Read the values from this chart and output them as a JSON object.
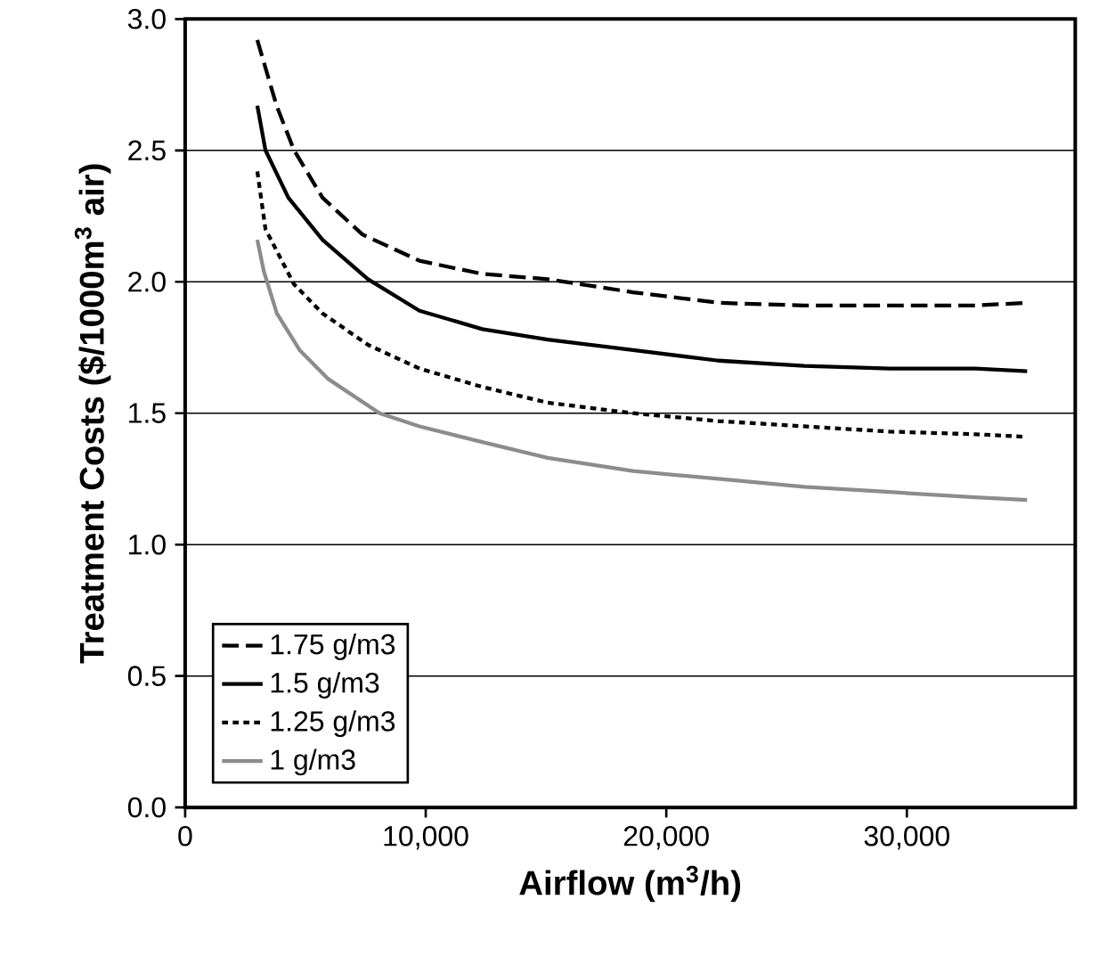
{
  "chart_data": {
    "type": "line",
    "xlabel": "Airflow (m$^{3}$/h)",
    "ylabel": "Treatment Costs ($/1000m$^{3}$ air)",
    "xlim": [
      0,
      37000
    ],
    "ylim": [
      0,
      3
    ],
    "xticks": [
      0,
      {
        "value": 10000,
        "label": "10,000"
      },
      {
        "value": 20000,
        "label": "20,000"
      },
      {
        "value": 30000,
        "label": "30,000"
      }
    ],
    "yticks": [
      {
        "value": 0,
        "label": "0.0"
      },
      {
        "value": 0.5,
        "label": "0.5"
      },
      {
        "value": 1,
        "label": "1.0"
      },
      {
        "value": 1.5,
        "label": "1.5"
      },
      {
        "value": 2,
        "label": "2.0"
      },
      {
        "value": 2.5,
        "label": "2.5"
      },
      {
        "value": 3,
        "label": "3.0"
      }
    ],
    "grid": "y",
    "legend": "bottom left",
    "marker": "none",
    "series": [
      {
        "name": "1.75 g/m3",
        "color": "#000000",
        "line_style": "dashed",
        "x": [
          3000,
          3800,
          4530,
          5710,
          7370,
          9740,
          12350,
          15070,
          18620,
          22170,
          25730,
          29280,
          32840,
          35000
        ],
        "values": [
          2.92,
          2.67,
          2.5,
          2.32,
          2.18,
          2.08,
          2.03,
          2.01,
          1.96,
          1.92,
          1.91,
          1.91,
          1.91,
          1.92
        ]
      },
      {
        "name": "1.5 g/m3",
        "color": "#000000",
        "line_style": "solid",
        "x": [
          3000,
          3340,
          4290,
          5710,
          7600,
          9740,
          12350,
          15070,
          18620,
          22170,
          25730,
          29280,
          32840,
          35000
        ],
        "values": [
          2.67,
          2.5,
          2.32,
          2.16,
          2.01,
          1.89,
          1.82,
          1.78,
          1.74,
          1.7,
          1.68,
          1.67,
          1.67,
          1.66
        ]
      },
      {
        "name": "1.25 g/m3",
        "color": "#000000",
        "line_style": "dotted",
        "x": [
          3000,
          3340,
          4530,
          5710,
          7600,
          9740,
          12350,
          15070,
          18620,
          22170,
          25730,
          29280,
          32840,
          35000
        ],
        "values": [
          2.42,
          2.2,
          1.99,
          1.88,
          1.76,
          1.67,
          1.6,
          1.54,
          1.5,
          1.47,
          1.45,
          1.43,
          1.42,
          1.41
        ]
      },
      {
        "name": "1 g/m3",
        "color": "#8c8c8c",
        "line_style": "solid",
        "x": [
          3000,
          3270,
          3810,
          4760,
          5950,
          8080,
          9740,
          12350,
          15070,
          18620,
          22170,
          25730,
          29280,
          32840,
          35000
        ],
        "values": [
          2.16,
          2.04,
          1.88,
          1.74,
          1.63,
          1.5,
          1.45,
          1.39,
          1.33,
          1.28,
          1.25,
          1.22,
          1.2,
          1.18,
          1.17
        ]
      }
    ]
  }
}
